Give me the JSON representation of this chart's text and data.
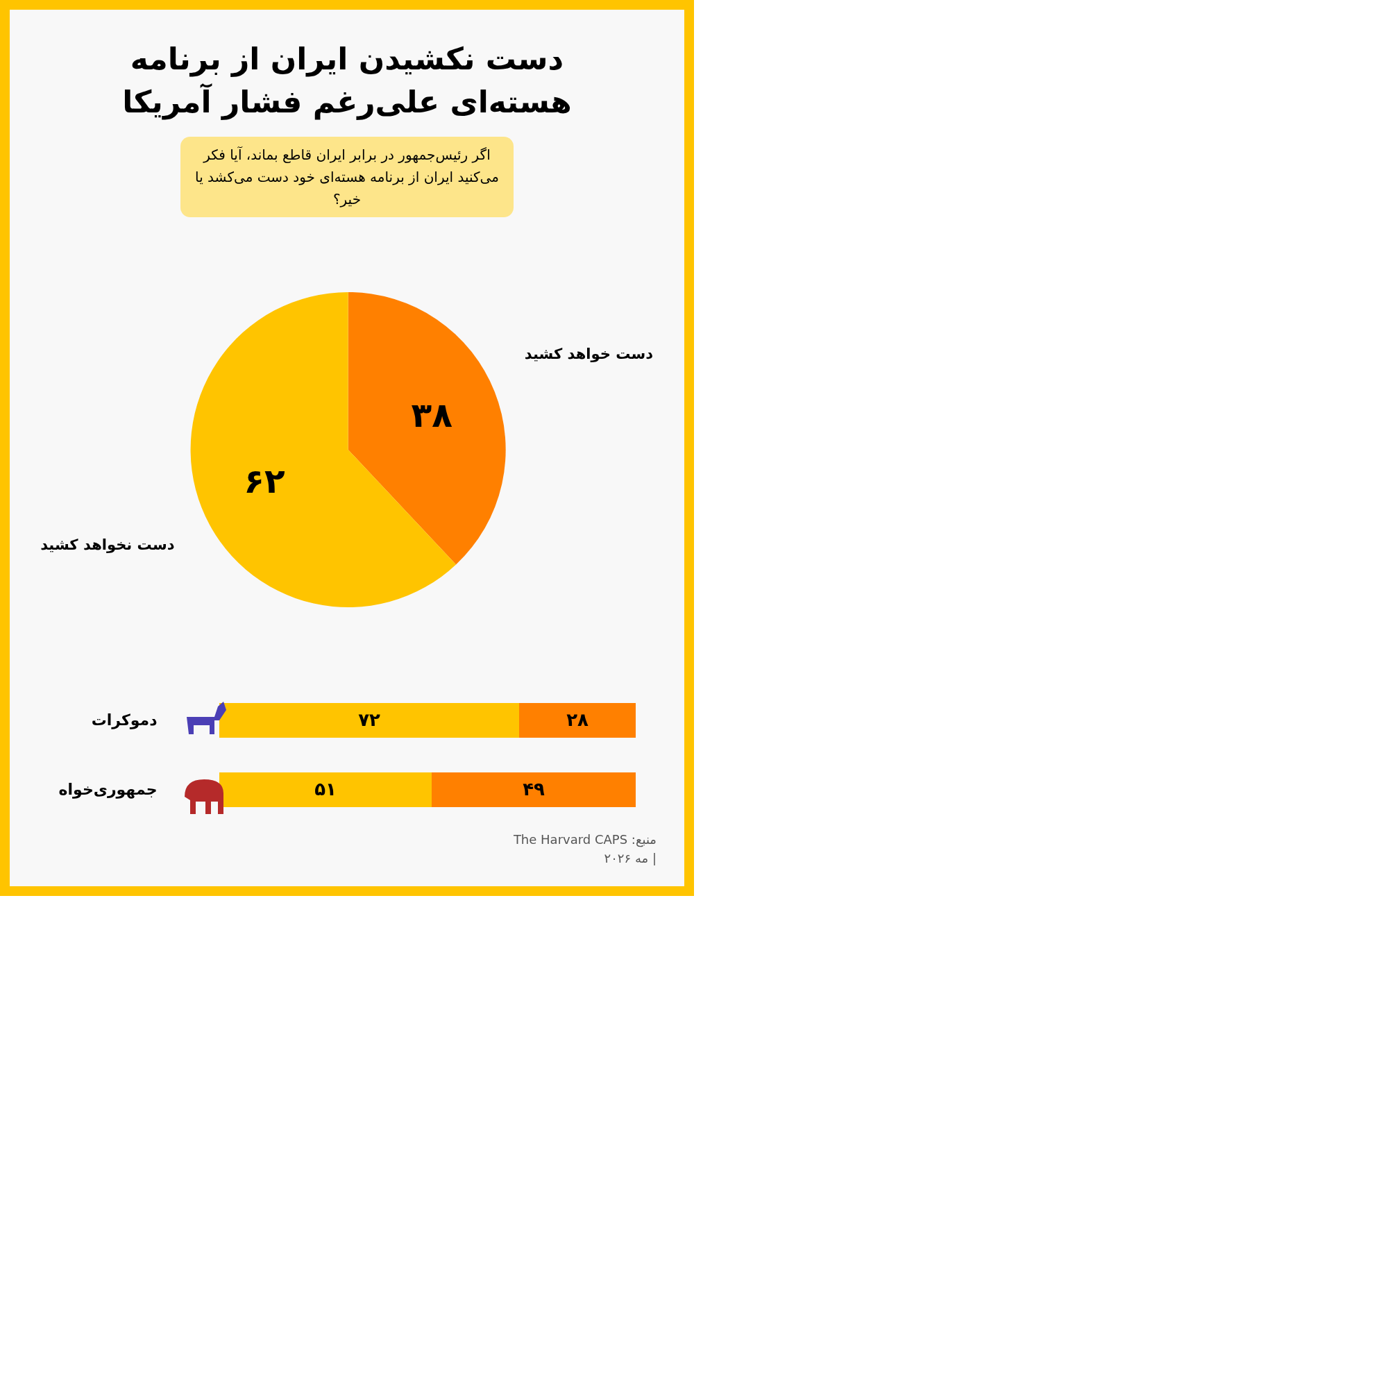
{
  "chart_data": [
    {
      "type": "pie",
      "title": "دست نکشیدن ایران از برنامه هسته‌ای علی‌رغم فشار آمریکا",
      "subtitle": "اگر رئیس‌جمهور در برابر ایران قاطع بماند، آیا فکر می‌کنید ایران از برنامه هسته‌ای خود دست می‌کشد یا خیر؟",
      "categories": [
        "دست خواهد کشید",
        "دست نخواهد کشید"
      ],
      "values": [
        38,
        62
      ],
      "colors": [
        "#ff8000",
        "#ffc400"
      ],
      "value_labels": [
        "۳۸",
        "۶۲"
      ],
      "legend": false
    },
    {
      "type": "bar",
      "orientation": "horizontal",
      "stacked": true,
      "categories": [
        "دموکرات",
        "جمهوری‌خواه"
      ],
      "xlim": [
        0,
        100
      ],
      "tick_labels": "y",
      "series": [
        {
          "color": "#ffc400",
          "values": [
            72,
            51
          ],
          "value_labels": [
            "۷۲",
            "۵۱"
          ]
        },
        {
          "color": "#ff8000",
          "values": [
            28,
            49
          ],
          "value_labels": [
            "۲۸",
            "۴۹"
          ]
        }
      ],
      "annotations": [
        "منبع: The Harvard CAPS",
        "| مه ۲۰۲۶"
      ]
    }
  ]
}
